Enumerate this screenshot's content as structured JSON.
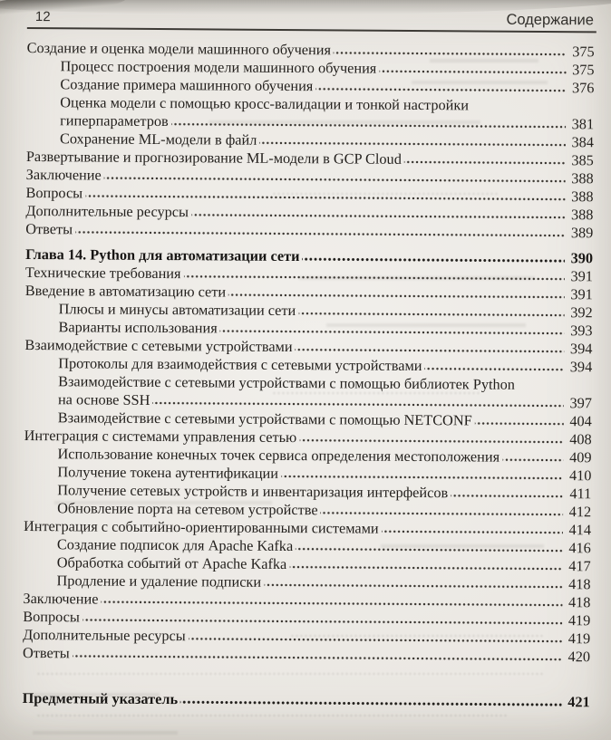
{
  "page": {
    "folio": "12",
    "header_title": "Содержание"
  },
  "toc": {
    "entries": [
      {
        "level": 0,
        "lines": [
          "Создание и оценка модели машинного обучения"
        ],
        "page": "375"
      },
      {
        "level": 1,
        "lines": [
          "Процесс построения модели машинного обучения"
        ],
        "page": "375"
      },
      {
        "level": 1,
        "lines": [
          "Создание примера машинного обучения"
        ],
        "page": "376"
      },
      {
        "level": 1,
        "lines": [
          "Оценка модели с помощью кросс-валидации и тонкой настройки",
          "гиперпараметров"
        ],
        "page": "381"
      },
      {
        "level": 1,
        "lines": [
          "Сохранение ML-модели в файл"
        ],
        "page": "384"
      },
      {
        "level": 0,
        "lines": [
          "Развертывание и прогнозирование ML-модели в GCP Cloud"
        ],
        "page": "385"
      },
      {
        "level": 0,
        "lines": [
          "Заключение"
        ],
        "page": "388"
      },
      {
        "level": 0,
        "lines": [
          "Вопросы"
        ],
        "page": "388"
      },
      {
        "level": 0,
        "lines": [
          "Дополнительные ресурсы"
        ],
        "page": "388"
      },
      {
        "level": 0,
        "lines": [
          "Ответы"
        ],
        "page": "389"
      },
      {
        "level": 0,
        "bold": true,
        "gap": "chapter",
        "lines": [
          "Глава 14. Python для автоматизации сети"
        ],
        "page": "390"
      },
      {
        "level": 0,
        "lines": [
          "Технические требования"
        ],
        "page": "391"
      },
      {
        "level": 0,
        "lines": [
          "Введение в автоматизацию сети"
        ],
        "page": "391"
      },
      {
        "level": 1,
        "lines": [
          "Плюсы и минусы автоматизации сети"
        ],
        "page": "392"
      },
      {
        "level": 1,
        "lines": [
          "Варианты использования"
        ],
        "page": "393"
      },
      {
        "level": 0,
        "lines": [
          "Взаимодействие с сетевыми устройствами"
        ],
        "page": "394"
      },
      {
        "level": 1,
        "lines": [
          "Протоколы для взаимодействия с сетевыми устройствами"
        ],
        "page": "394"
      },
      {
        "level": 1,
        "lines": [
          "Взаимодействие с сетевыми устройствами с помощью библиотек Python",
          "на основе SSH"
        ],
        "page": "397"
      },
      {
        "level": 1,
        "lines": [
          "Взаимодействие с сетевыми устройствами с помощью NETCONF"
        ],
        "page": "404"
      },
      {
        "level": 0,
        "lines": [
          "Интеграция с системами управления сетью"
        ],
        "page": "408"
      },
      {
        "level": 1,
        "lines": [
          "Использование конечных точек сервиса определения местоположения"
        ],
        "page": "409"
      },
      {
        "level": 1,
        "lines": [
          "Получение токена аутентификации"
        ],
        "page": "410"
      },
      {
        "level": 1,
        "lines": [
          "Получение сетевых устройств и инвентаризация интерфейсов"
        ],
        "page": "411"
      },
      {
        "level": 1,
        "lines": [
          "Обновление порта на сетевом устройстве"
        ],
        "page": "412"
      },
      {
        "level": 0,
        "lines": [
          "Интеграция с событийно-ориентированными системами"
        ],
        "page": "414"
      },
      {
        "level": 1,
        "lines": [
          "Создание подписок для Apache Kafka"
        ],
        "page": "416"
      },
      {
        "level": 1,
        "lines": [
          "Обработка событий от Apache Kafka"
        ],
        "page": "417"
      },
      {
        "level": 1,
        "lines": [
          "Продление и удаление подписки"
        ],
        "page": "418"
      },
      {
        "level": 0,
        "lines": [
          "Заключение"
        ],
        "page": "418"
      },
      {
        "level": 0,
        "lines": [
          "Вопросы"
        ],
        "page": "419"
      },
      {
        "level": 0,
        "lines": [
          "Дополнительные ресурсы"
        ],
        "page": "419"
      },
      {
        "level": 0,
        "lines": [
          "Ответы"
        ],
        "page": "420"
      },
      {
        "level": 0,
        "bold": true,
        "gap": "index",
        "lines": [
          "Предметный указатель"
        ],
        "page": "421"
      }
    ]
  }
}
